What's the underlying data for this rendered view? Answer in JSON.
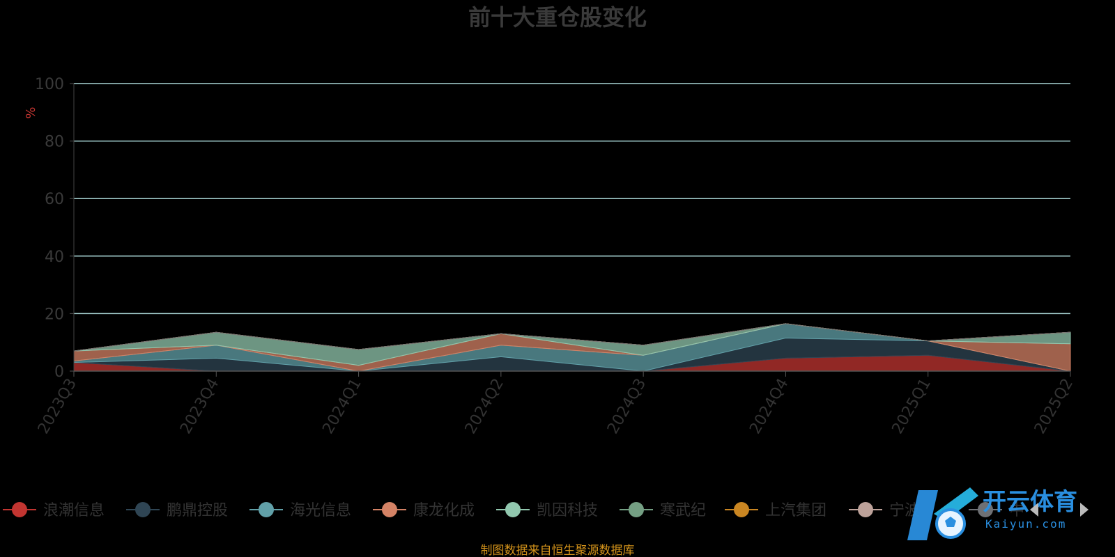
{
  "chart_data": {
    "type": "area",
    "stacked": true,
    "title": "前十大重仓股变化",
    "unit": "%",
    "categories": [
      "2023Q3",
      "2023Q4",
      "2024Q1",
      "2024Q2",
      "2024Q3",
      "2024Q4",
      "2025Q1",
      "2025Q2"
    ],
    "ylim": [
      0,
      100
    ],
    "yticks": [
      0,
      20,
      40,
      60,
      80,
      100
    ],
    "grid": true,
    "legend_position": "bottom",
    "series": [
      {
        "name": "浪潮信息",
        "color": "#c23531",
        "values": [
          3,
          0,
          0,
          0,
          0,
          4.5,
          5.5,
          0
        ]
      },
      {
        "name": "鹏鼎控股",
        "color": "#2f4554",
        "values": [
          0,
          4.5,
          0,
          5,
          0,
          7,
          5,
          0
        ]
      },
      {
        "name": "海光信息",
        "color": "#61a0a8",
        "values": [
          0.5,
          4.5,
          0,
          4,
          5.5,
          5,
          0,
          0
        ]
      },
      {
        "name": "康龙化成",
        "color": "#d48265",
        "values": [
          3.5,
          0,
          2,
          4,
          0,
          0,
          0,
          9.5
        ]
      },
      {
        "name": "凯因科技",
        "color": "#91c7ae",
        "values": [
          0,
          4.5,
          5.5,
          0,
          3.5,
          0,
          0,
          4
        ]
      },
      {
        "name": "寒武纪",
        "color": "#749f83",
        "values": [
          0,
          0,
          0,
          0,
          0,
          0,
          0,
          0
        ]
      },
      {
        "name": "上汽集团",
        "color": "#ca8622",
        "values": [
          0,
          0,
          0,
          0,
          0,
          0,
          0,
          0
        ]
      },
      {
        "name": "宁波银行",
        "color": "#bda29a",
        "values": [
          0,
          0,
          0,
          0,
          0,
          0,
          0,
          0
        ]
      },
      {
        "name": "中际旭创",
        "color": "#6e7074",
        "values": [
          0,
          0,
          0,
          0,
          0,
          0,
          0,
          0
        ]
      }
    ]
  },
  "legend_labels": [
    "浪潮信息",
    "鹏鼎控股",
    "海光信息",
    "康龙化成",
    "凯因科技",
    "寒武纪",
    "上汽集团",
    "宁波",
    "中"
  ],
  "source_note": "制图数据来自恒生聚源数据库",
  "watermark": {
    "logo_text": "开云体育",
    "sub_text": "Kaiyun.com"
  }
}
